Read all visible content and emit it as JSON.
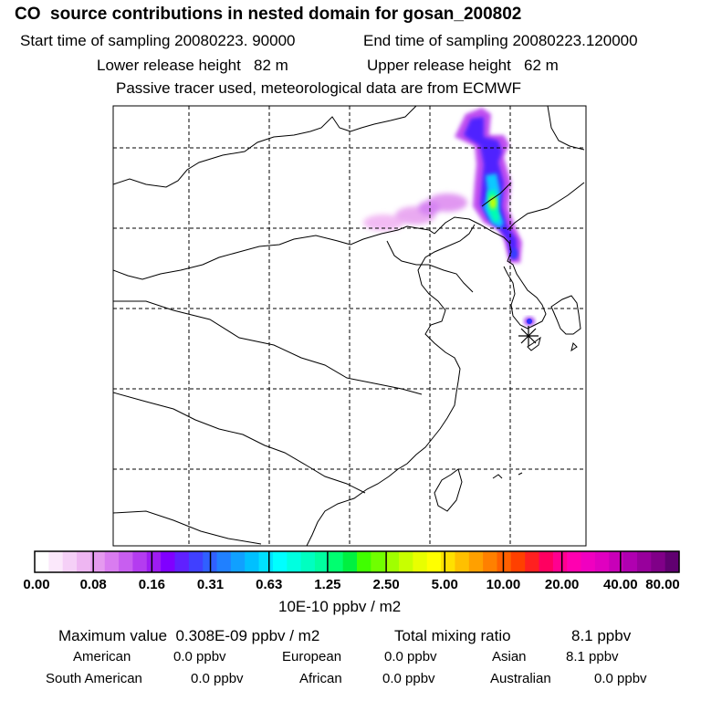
{
  "header": {
    "title": "CO  source contributions in nested domain for gosan_200802",
    "start_label": "Start time of sampling 20080223. 90000",
    "end_label": "End time of sampling 20080223.120000",
    "lower_label": "Lower release height   82 m",
    "upper_label": "Upper release height   62 m",
    "note": "Passive tracer used, meteorological data are from ECMWF"
  },
  "colorbar": {
    "ticks": [
      "0.00",
      "0.08",
      "0.16",
      "0.31",
      "0.63",
      "1.25",
      "2.50",
      "5.00",
      "10.00",
      "20.00",
      "40.00",
      "80.00"
    ],
    "units": "10E-10 ppbv / m2",
    "colors": [
      "#ffffff",
      "#fbe8fb",
      "#f5d0f7",
      "#eeb6f2",
      "#e59aef",
      "#d97cf0",
      "#c85ef0",
      "#b43cf0",
      "#9e1cf2",
      "#8000ff",
      "#6020ff",
      "#4040ff",
      "#3060ff",
      "#2080ff",
      "#10a0ff",
      "#00c0ff",
      "#00e0ff",
      "#00ffff",
      "#00ffe0",
      "#00ffc0",
      "#00ffa0",
      "#00ff70",
      "#00f040",
      "#40ff00",
      "#70ff00",
      "#a0ff00",
      "#c8ff00",
      "#e8ff00",
      "#ffff00",
      "#ffe000",
      "#ffc000",
      "#ffa000",
      "#ff8000",
      "#ff6000",
      "#ff4000",
      "#ff2020",
      "#ff0060",
      "#ff0090",
      "#ff00b0",
      "#f000c0",
      "#e000c0",
      "#c800b8",
      "#b000b0",
      "#98009c",
      "#800088",
      "#600070"
    ]
  },
  "summary": {
    "max_label": "Maximum value  0.308E-09 ppbv / m2",
    "total_label": "Total mixing ratio",
    "total_value": "8.1 ppbv",
    "american_label": "American",
    "american_value": "0.0 ppbv",
    "european_label": "European",
    "european_value": "0.0 ppbv",
    "asian_label": "Asian",
    "asian_value": "8.1 ppbv",
    "south_american_label": "South American",
    "south_american_value": "0.0 ppbv",
    "african_label": "African",
    "african_value": "0.0 ppbv",
    "australian_label": "Australian",
    "australian_value": "0.0 ppbv"
  }
}
